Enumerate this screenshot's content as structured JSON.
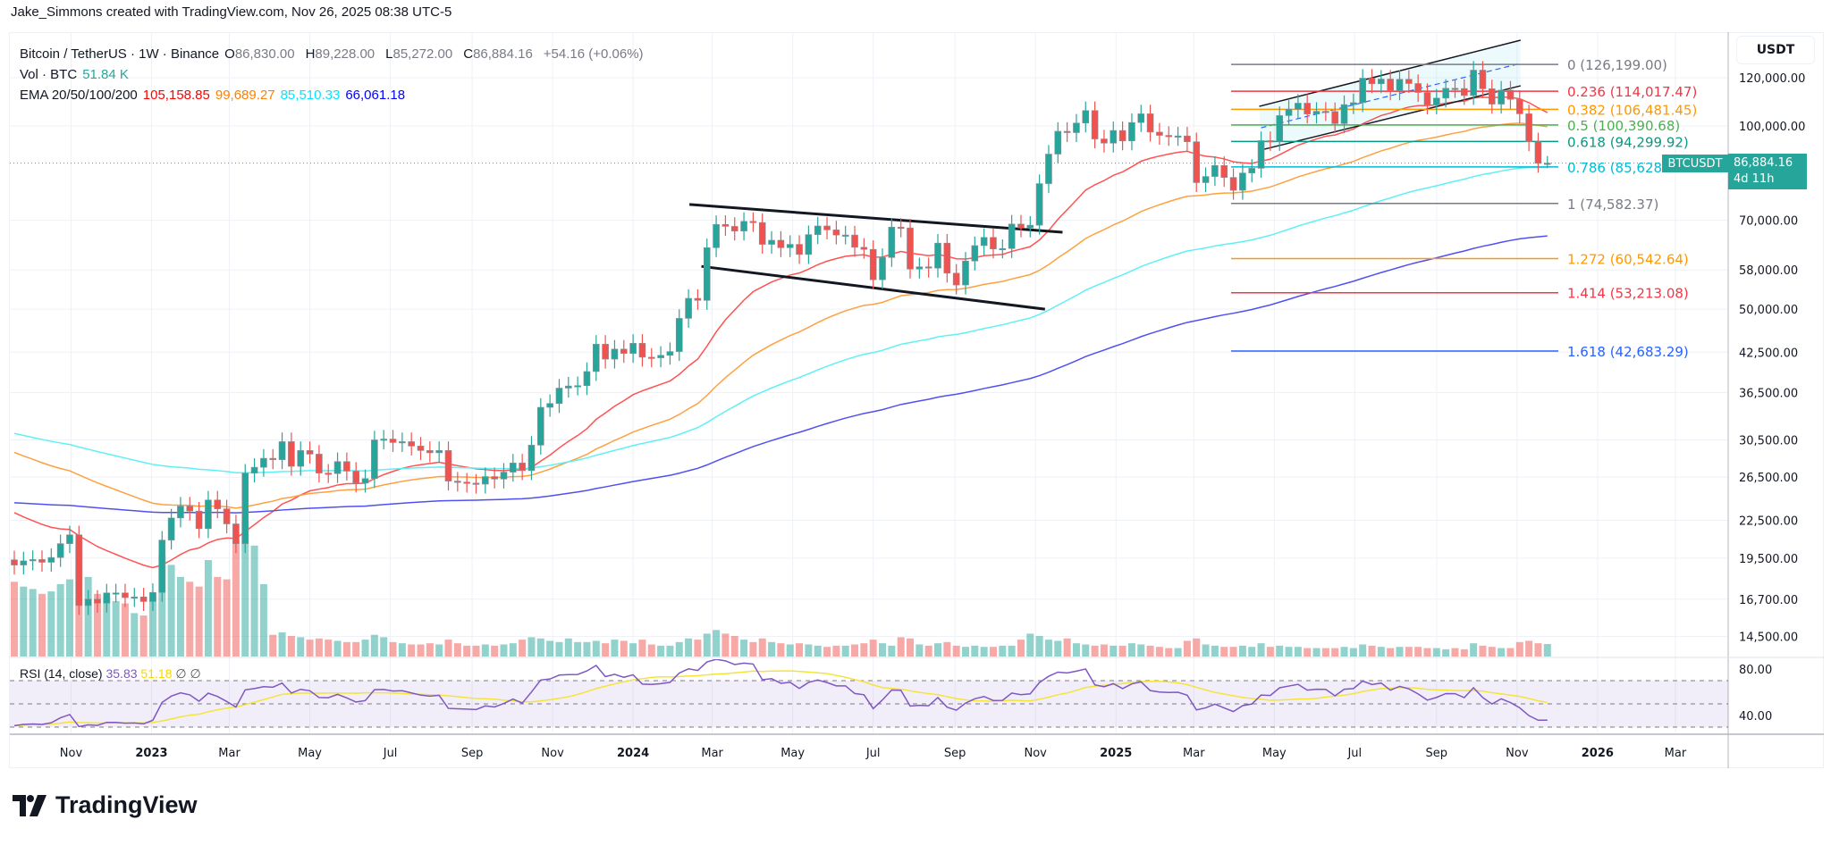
{
  "credit": "Jake_Simmons created with TradingView.com, Nov 26, 2025 08:38 UTC-5",
  "legend": {
    "symbol": "Bitcoin / TetherUS · 1W · Binance",
    "o_label": "O",
    "o": "86,830.00",
    "h_label": "H",
    "h": "89,228.00",
    "l_label": "L",
    "l": "85,272.00",
    "c_label": "C",
    "c": "86,884.16",
    "change": "+54.16 (+0.06%)",
    "vol_label": "Vol · BTC",
    "vol": "51.84 K",
    "ema_label": "EMA 20/50/100/200",
    "ema20": "105,158.85",
    "ema50": "99,689.27",
    "ema100": "85,510.33",
    "ema200": "66,061.18"
  },
  "currency": "USDT",
  "symbol_tag": "BTCUSDT",
  "price_tag": {
    "price": "86,884.16",
    "countdown": "4d 11h"
  },
  "rsi": {
    "label": "RSI (14, close)",
    "value": "35.83",
    "ma": "51.18",
    "na1": "∅",
    "na2": "∅"
  },
  "logo": "TradingView",
  "colors": {
    "up": "#26a69a",
    "down": "#ef5350",
    "ema20": "#ff5252",
    "ema50": "#ffa040",
    "ema100": "#5ff0f5",
    "ema200": "#5050f0",
    "rsi": "#7e57c2",
    "rsi_ma": "#f5e33b",
    "grid": "#eef1f6"
  },
  "chart_data": {
    "type": "candlestick",
    "interval": "1W",
    "first_week": "2022-09-19",
    "y_scale": "log",
    "closes": [
      19000,
      19300,
      19400,
      19200,
      19550,
      20600,
      21300,
      16300,
      16700,
      16450,
      17100,
      17100,
      16800,
      16840,
      16550,
      17130,
      20880,
      22700,
      23750,
      23300,
      21800,
      24300,
      23500,
      22200,
      20600,
      26900,
      27500,
      28450,
      28300,
      30300,
      27600,
      29300,
      28900,
      26900,
      26850,
      28100,
      27100,
      25900,
      26350,
      30500,
      30600,
      30200,
      30300,
      29800,
      29300,
      29050,
      29300,
      26100,
      26000,
      25900,
      25800,
      26550,
      26300,
      27000,
      27950,
      27150,
      29900,
      34500,
      35000,
      37100,
      37400,
      37450,
      39500,
      43800,
      41400,
      43000,
      42300,
      43950,
      41700,
      41600,
      42000,
      42600,
      48300,
      52100,
      51700,
      63100,
      68900,
      68400,
      67200,
      69700,
      69400,
      63900,
      64900,
      63100,
      63900,
      61500,
      66300,
      68500,
      67500,
      66200,
      66200,
      63200,
      62700,
      55900,
      60800,
      68200,
      68000,
      58200,
      58700,
      58400,
      64200,
      57300,
      54800,
      60000,
      63600,
      65600,
      62800,
      62900,
      69000,
      68000,
      68700,
      80400,
      89900,
      98000,
      97500,
      101100,
      106000,
      95200,
      93700,
      98300,
      94500,
      101300,
      104700,
      97700,
      96500,
      96100,
      96300,
      94200,
      80700,
      82600,
      86100,
      82300,
      78400,
      83700,
      85200,
      94600,
      94300,
      104000,
      106500,
      109000,
      104600,
      105700,
      105600,
      100900,
      108400,
      109200,
      119800,
      117300,
      119400,
      114200,
      119300,
      117400,
      113500,
      108300,
      111100,
      115300,
      115200,
      112200,
      123500,
      115100,
      108600,
      114500,
      110600,
      104700,
      94200,
      86830,
      86884.16
    ],
    "last_candle": {
      "open": 86830.0,
      "high": 89228.0,
      "low": 85272.0,
      "close": 86884.16
    },
    "volumes_k": [
      310,
      290,
      280,
      260,
      270,
      300,
      320,
      480,
      330,
      260,
      250,
      230,
      220,
      180,
      170,
      260,
      420,
      380,
      330,
      310,
      290,
      400,
      330,
      320,
      480,
      560,
      460,
      300,
      90,
      100,
      85,
      80,
      70,
      75,
      70,
      65,
      60,
      60,
      70,
      90,
      80,
      60,
      55,
      50,
      50,
      55,
      50,
      70,
      55,
      45,
      45,
      50,
      45,
      50,
      55,
      70,
      80,
      75,
      65,
      60,
      75,
      60,
      60,
      65,
      55,
      70,
      65,
      55,
      70,
      50,
      45,
      45,
      60,
      75,
      70,
      95,
      110,
      95,
      85,
      70,
      60,
      75,
      60,
      55,
      50,
      55,
      50,
      45,
      40,
      45,
      45,
      50,
      55,
      70,
      55,
      45,
      80,
      75,
      50,
      45,
      55,
      60,
      45,
      40,
      45,
      40,
      40,
      45,
      45,
      70,
      95,
      85,
      70,
      65,
      75,
      55,
      50,
      45,
      50,
      45,
      45,
      55,
      50,
      45,
      40,
      35,
      35,
      65,
      75,
      50,
      45,
      40,
      40,
      45,
      40,
      55,
      40,
      45,
      40,
      40,
      35,
      35,
      35,
      35,
      40,
      35,
      50,
      45,
      40,
      35,
      40,
      40,
      40,
      35,
      35,
      30,
      35,
      30,
      55,
      45,
      40,
      35,
      35,
      60,
      65,
      55,
      51.84
    ],
    "y_ticks": [
      {
        "value": 120000,
        "label": "120,000.00"
      },
      {
        "value": 100000,
        "label": "100,000.00"
      },
      {
        "value": 70000,
        "label": "70,000.00"
      },
      {
        "value": 58000,
        "label": "58,000.00"
      },
      {
        "value": 50000,
        "label": "50,000.00"
      },
      {
        "value": 42500,
        "label": "42,500.00"
      },
      {
        "value": 36500,
        "label": "36,500.00"
      },
      {
        "value": 30500,
        "label": "30,500.00"
      },
      {
        "value": 26500,
        "label": "26,500.00"
      },
      {
        "value": 22500,
        "label": "22,500.00"
      },
      {
        "value": 19500,
        "label": "19,500.00"
      },
      {
        "value": 16700,
        "label": "16,700.00"
      },
      {
        "value": 14500,
        "label": "14,500.00"
      }
    ],
    "rsi_ticks": [
      {
        "value": 80,
        "label": "80.00"
      },
      {
        "value": 40,
        "label": "40.00"
      }
    ],
    "x_ticks": [
      {
        "date": "2022-11-01",
        "label": "Nov"
      },
      {
        "date": "2023-01-01",
        "label": "2023",
        "bold": true
      },
      {
        "date": "2023-03-01",
        "label": "Mar"
      },
      {
        "date": "2023-05-01",
        "label": "May"
      },
      {
        "date": "2023-07-01",
        "label": "Jul"
      },
      {
        "date": "2023-09-01",
        "label": "Sep"
      },
      {
        "date": "2023-11-01",
        "label": "Nov"
      },
      {
        "date": "2024-01-01",
        "label": "2024",
        "bold": true
      },
      {
        "date": "2024-03-01",
        "label": "Mar"
      },
      {
        "date": "2024-05-01",
        "label": "May"
      },
      {
        "date": "2024-07-01",
        "label": "Jul"
      },
      {
        "date": "2024-09-01",
        "label": "Sep"
      },
      {
        "date": "2024-11-01",
        "label": "Nov"
      },
      {
        "date": "2025-01-01",
        "label": "2025",
        "bold": true
      },
      {
        "date": "2025-03-01",
        "label": "Mar"
      },
      {
        "date": "2025-05-01",
        "label": "May"
      },
      {
        "date": "2025-07-01",
        "label": "Jul"
      },
      {
        "date": "2025-09-01",
        "label": "Sep"
      },
      {
        "date": "2025-11-01",
        "label": "Nov"
      },
      {
        "date": "2026-01-01",
        "label": "2026",
        "bold": true
      },
      {
        "date": "2026-03-01",
        "label": "Mar"
      }
    ],
    "fib_levels": [
      {
        "label": "0 (126,199.00)",
        "price": 126199.0,
        "color": "#787b86"
      },
      {
        "label": "0.236 (114,017.47)",
        "price": 114017.47,
        "color": "#f23645"
      },
      {
        "label": "0.382 (106,481.45)",
        "price": 106481.45,
        "color": "#ff9800"
      },
      {
        "label": "0.5 (100,390.68)",
        "price": 100390.68,
        "color": "#4caf50"
      },
      {
        "label": "0.618 (94,299.92)",
        "price": 94299.92,
        "color": "#089981"
      },
      {
        "label": "0.786 (85,628",
        "price": 85628,
        "color": "#00bcd4"
      },
      {
        "label": "1 (74,582.37)",
        "price": 74582.37,
        "color": "#787b86"
      },
      {
        "label": "1.272 (60,542.64)",
        "price": 60542.64,
        "color": "#ff9800"
      },
      {
        "label": "1.414 (53,213.08)",
        "price": 53213.08,
        "color": "#f23645"
      },
      {
        "label": "1.618 (42,683.29)",
        "price": 42683.29,
        "color": "#2962ff"
      }
    ]
  }
}
